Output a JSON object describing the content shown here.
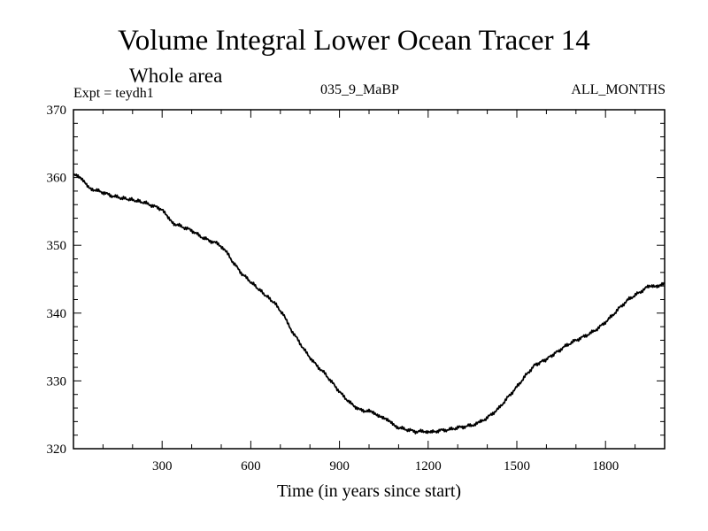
{
  "header": {
    "title": "Volume Integral Lower Ocean Tracer 14",
    "subtitle": "Whole area",
    "experiment": "Expt = teydh1",
    "run_label": "035_9_MaBP",
    "months_label": "ALL_MONTHS"
  },
  "chart_data": {
    "type": "line",
    "title": "Volume Integral Lower Ocean Tracer 14",
    "subtitle": "Whole area",
    "xlabel": "Time (in years since start)",
    "ylabel": "",
    "xlim": [
      0,
      2000
    ],
    "ylim": [
      320,
      370
    ],
    "x_ticks": [
      300,
      600,
      900,
      1200,
      1500,
      1800
    ],
    "y_ticks": [
      320,
      330,
      340,
      350,
      360,
      370
    ],
    "grid": false,
    "series": [
      {
        "name": "Tracer 14",
        "color": "#000000",
        "x": [
          0,
          10,
          30,
          50,
          70,
          100,
          130,
          160,
          200,
          240,
          270,
          300,
          320,
          340,
          370,
          400,
          430,
          460,
          490,
          510,
          540,
          570,
          600,
          640,
          680,
          710,
          730,
          760,
          790,
          820,
          850,
          880,
          910,
          940,
          970,
          1000,
          1020,
          1040,
          1060,
          1080,
          1100,
          1130,
          1160,
          1190,
          1210,
          1240,
          1270,
          1300,
          1330,
          1360,
          1380,
          1410,
          1440,
          1470,
          1500,
          1530,
          1560,
          1600,
          1640,
          1670,
          1700,
          1730,
          1760,
          1790,
          1820,
          1850,
          1880,
          1910,
          1940,
          1960,
          1980,
          2000
        ],
        "values": [
          360.3,
          360.5,
          359.6,
          358.6,
          358.2,
          357.8,
          357.3,
          357.0,
          356.7,
          356.3,
          355.8,
          355.3,
          354.0,
          353.2,
          352.7,
          352.2,
          351.3,
          350.7,
          350.2,
          349.5,
          347.5,
          345.8,
          344.6,
          343.0,
          341.5,
          339.8,
          338.0,
          336.0,
          334.0,
          332.4,
          331.1,
          329.5,
          327.9,
          326.6,
          325.7,
          325.5,
          325.2,
          324.8,
          324.2,
          323.7,
          323.1,
          322.8,
          322.5,
          322.6,
          322.4,
          322.7,
          322.8,
          323.1,
          323.3,
          323.6,
          324.0,
          324.9,
          326.0,
          327.6,
          329.1,
          330.8,
          332.3,
          333.2,
          334.4,
          335.3,
          336.0,
          336.6,
          337.3,
          338.3,
          339.5,
          340.9,
          342.1,
          342.9,
          343.8,
          344.1,
          344.0,
          344.3
        ]
      }
    ]
  }
}
